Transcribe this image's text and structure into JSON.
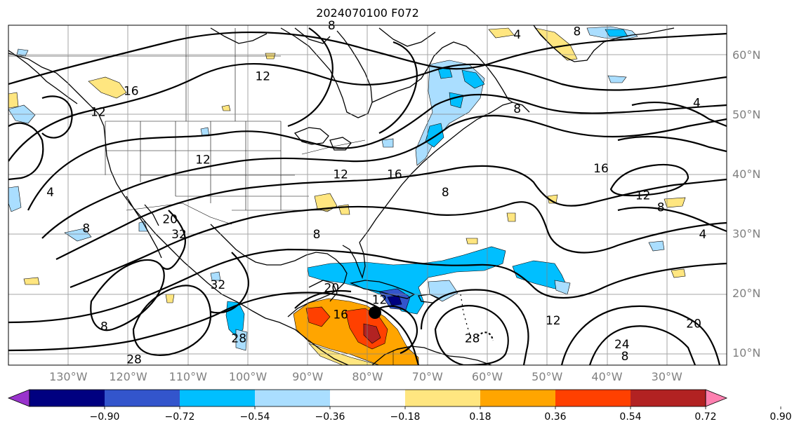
{
  "title": "2024070100 F072",
  "lat_labels": [
    {
      "text": "60°N",
      "lat": 60
    },
    {
      "text": "50°N",
      "lat": 50
    },
    {
      "text": "40°N",
      "lat": 40
    },
    {
      "text": "30°N",
      "lat": 30
    },
    {
      "text": "20°N",
      "lat": 20
    },
    {
      "text": "10°N",
      "lat": 10
    }
  ],
  "lon_labels": [
    {
      "text": "130°W",
      "lon": -130
    },
    {
      "text": "120°W",
      "lon": -120
    },
    {
      "text": "110°W",
      "lon": -110
    },
    {
      "text": "100°W",
      "lon": -100
    },
    {
      "text": "90°W",
      "lon": -90
    },
    {
      "text": "80°W",
      "lon": -80
    },
    {
      "text": "70°W",
      "lon": -70
    },
    {
      "text": "60°W",
      "lon": -60
    },
    {
      "text": "50°W",
      "lon": -50
    },
    {
      "text": "40°W",
      "lon": -40
    },
    {
      "text": "30°W",
      "lon": -30
    }
  ],
  "colorbar": {
    "ticks": [
      "−0.90",
      "−0.72",
      "−0.54",
      "−0.36",
      "−0.18",
      "0.18",
      "0.36",
      "0.54",
      "0.72",
      "0.90"
    ],
    "colors": [
      "#9933cc",
      "#000080",
      "#3355cc",
      "#00bfff",
      "#aadeff",
      "#ffffff",
      "#ffe680",
      "#ffa500",
      "#ff4000",
      "#b22222",
      "#ff80b0"
    ]
  },
  "contour_labels": [
    {
      "text": "12",
      "lon": -97.5,
      "lat": 56.5
    },
    {
      "text": "16",
      "lon": -119.5,
      "lat": 54
    },
    {
      "text": "12",
      "lon": -125,
      "lat": 50.5
    },
    {
      "text": "12",
      "lon": -107.5,
      "lat": 42.5
    },
    {
      "text": "12",
      "lon": -84.5,
      "lat": 40
    },
    {
      "text": "16",
      "lon": -75.5,
      "lat": 40
    },
    {
      "text": "8",
      "lon": -86,
      "lat": 65
    },
    {
      "text": "4",
      "lon": -55,
      "lat": 63.5
    },
    {
      "text": "8",
      "lon": -45,
      "lat": 64
    },
    {
      "text": "4",
      "lon": -25,
      "lat": 52
    },
    {
      "text": "8",
      "lon": -55,
      "lat": 51
    },
    {
      "text": "16",
      "lon": -41,
      "lat": 41
    },
    {
      "text": "12",
      "lon": -34,
      "lat": 36.5
    },
    {
      "text": "8",
      "lon": -31,
      "lat": 34.5
    },
    {
      "text": "4",
      "lon": -24,
      "lat": 30
    },
    {
      "text": "8",
      "lon": -67,
      "lat": 37
    },
    {
      "text": "4",
      "lon": -133,
      "lat": 37
    },
    {
      "text": "8",
      "lon": -127,
      "lat": 31
    },
    {
      "text": "20",
      "lon": -113,
      "lat": 32.5
    },
    {
      "text": "32",
      "lon": -111.5,
      "lat": 30
    },
    {
      "text": "8",
      "lon": -88.5,
      "lat": 30
    },
    {
      "text": "20",
      "lon": -86,
      "lat": 21
    },
    {
      "text": "32",
      "lon": -105,
      "lat": 21.5
    },
    {
      "text": "8",
      "lon": -124,
      "lat": 14.5
    },
    {
      "text": "28",
      "lon": -101.5,
      "lat": 12.5
    },
    {
      "text": "28",
      "lon": -119,
      "lat": 9
    },
    {
      "text": "16",
      "lon": -84.5,
      "lat": 16.5
    },
    {
      "text": "12",
      "lon": -78,
      "lat": 19
    },
    {
      "text": "12",
      "lon": -49,
      "lat": 15.5
    },
    {
      "text": "28",
      "lon": -62.5,
      "lat": 12.5
    },
    {
      "text": "20",
      "lon": -25.5,
      "lat": 15
    },
    {
      "text": "24",
      "lon": -37.5,
      "lat": 11.5
    },
    {
      "text": "8",
      "lon": -37,
      "lat": 9.5
    }
  ]
}
